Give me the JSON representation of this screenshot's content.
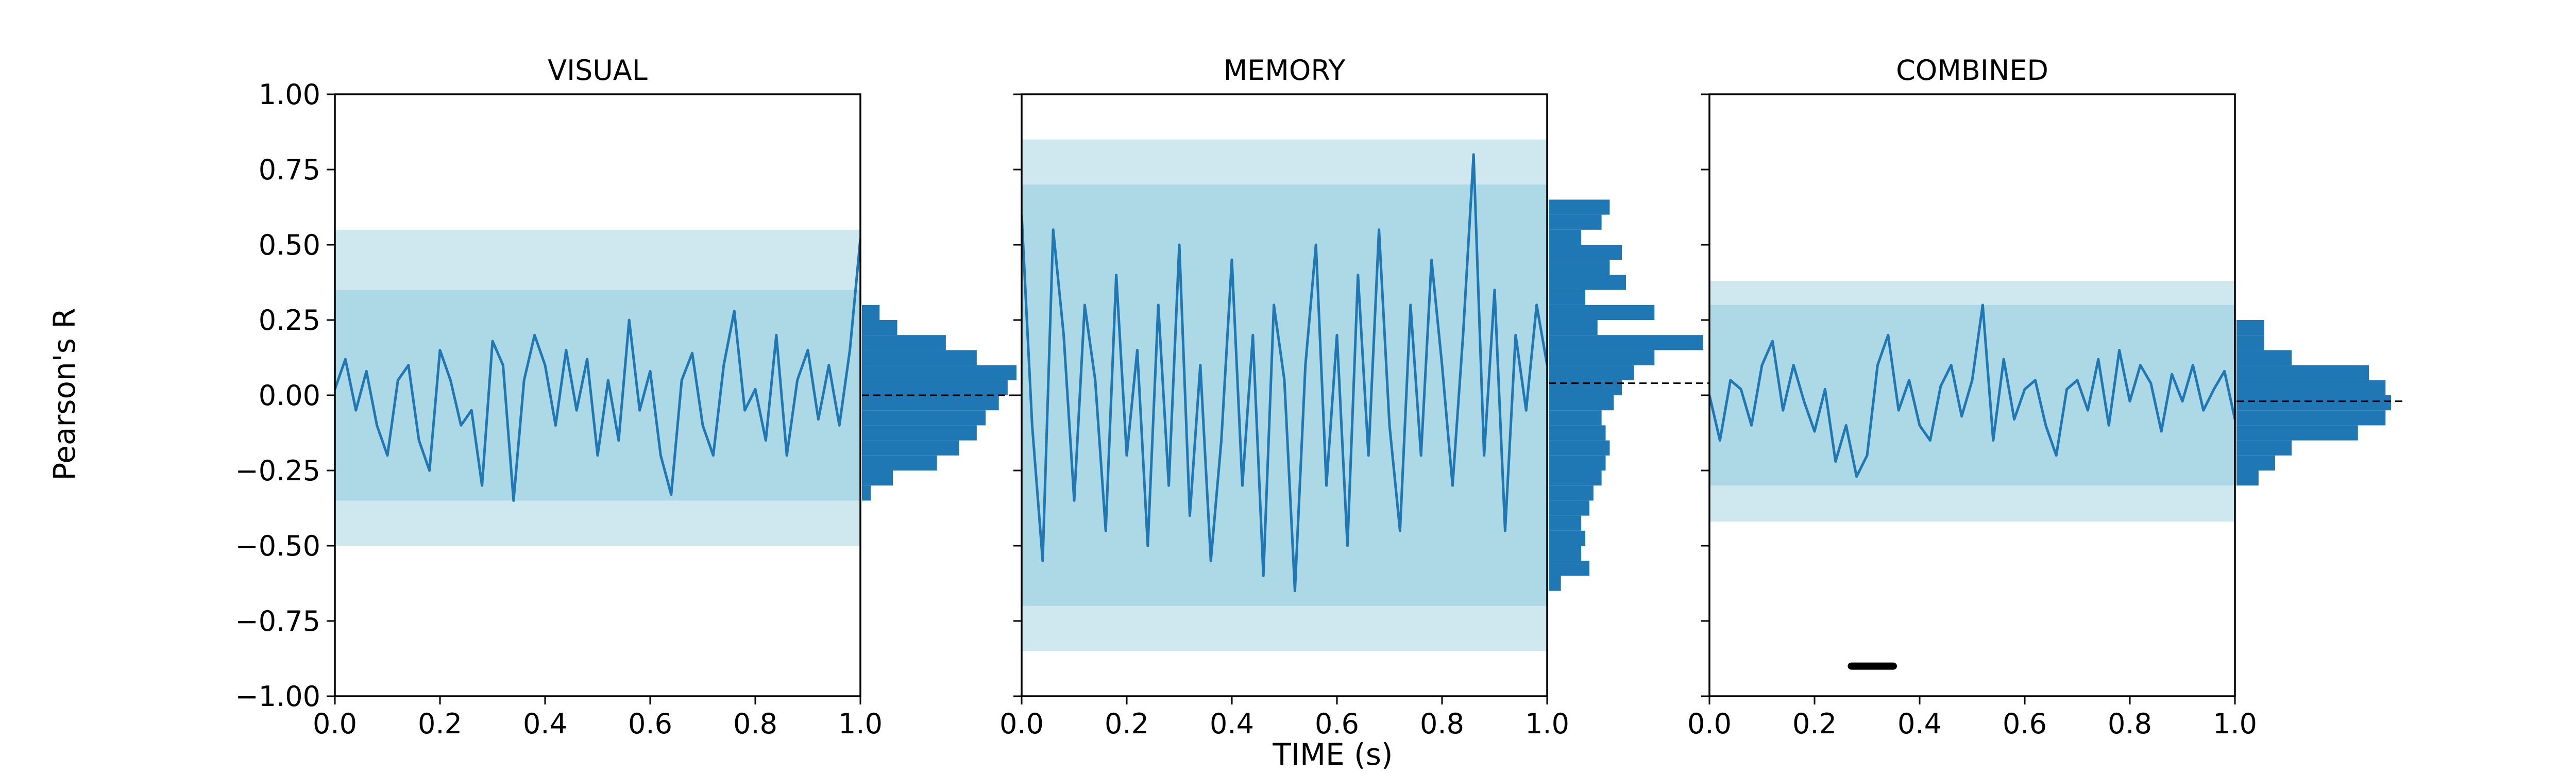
{
  "figure": {
    "ylabel": "Pearson's R",
    "xlabel": "TIME (s)"
  },
  "chart_data": [
    {
      "type": "line",
      "title": "VISUAL",
      "xlim": [
        0.0,
        1.0
      ],
      "ylim": [
        -1.0,
        1.0
      ],
      "xticks": [
        "0.0",
        "0.2",
        "0.4",
        "0.6",
        "0.8",
        "1.0"
      ],
      "yticks": [
        "1.00",
        "0.75",
        "0.50",
        "0.25",
        "0.00",
        "−0.25",
        "−0.50",
        "−0.75",
        "−1.00"
      ],
      "band": {
        "inner": [
          -0.35,
          0.35
        ],
        "outer": [
          -0.5,
          0.55
        ]
      },
      "series": [
        {
          "x": [
            0.0,
            0.02,
            0.04,
            0.06,
            0.08,
            0.1,
            0.12,
            0.14,
            0.16,
            0.18,
            0.2,
            0.22,
            0.24,
            0.26,
            0.28,
            0.3,
            0.32,
            0.34,
            0.36,
            0.38,
            0.4,
            0.42,
            0.44,
            0.46,
            0.48,
            0.5,
            0.52,
            0.54,
            0.56,
            0.58,
            0.6,
            0.62,
            0.64,
            0.66,
            0.68,
            0.7,
            0.72,
            0.74,
            0.76,
            0.78,
            0.8,
            0.82,
            0.84,
            0.86,
            0.88,
            0.9,
            0.92,
            0.94,
            0.96,
            0.98,
            1.0
          ],
          "y": [
            0.02,
            0.12,
            -0.05,
            0.08,
            -0.1,
            -0.2,
            0.05,
            0.1,
            -0.15,
            -0.25,
            0.15,
            0.05,
            -0.1,
            -0.05,
            -0.3,
            0.18,
            0.1,
            -0.35,
            0.05,
            0.2,
            0.1,
            -0.1,
            0.15,
            -0.05,
            0.12,
            -0.2,
            0.05,
            -0.15,
            0.25,
            -0.05,
            0.08,
            -0.2,
            -0.33,
            0.05,
            0.14,
            -0.1,
            -0.2,
            0.1,
            0.28,
            -0.05,
            0.02,
            -0.15,
            0.2,
            -0.2,
            0.05,
            0.15,
            -0.08,
            0.1,
            -0.1,
            0.15,
            0.52
          ]
        }
      ],
      "hist": {
        "bins": [
          -0.35,
          -0.3,
          -0.25,
          -0.2,
          -0.15,
          -0.1,
          -0.05,
          0.0,
          0.05,
          0.1,
          0.15,
          0.2,
          0.25
        ],
        "counts": [
          2,
          7,
          17,
          22,
          26,
          28,
          31,
          33,
          35,
          26,
          19,
          8,
          4
        ],
        "mean": 0.0
      }
    },
    {
      "type": "line",
      "title": "MEMORY",
      "xlim": [
        0.0,
        1.0
      ],
      "ylim": [
        -1.0,
        1.0
      ],
      "xticks": [
        "0.0",
        "0.2",
        "0.4",
        "0.6",
        "0.8",
        "1.0"
      ],
      "band": {
        "inner": [
          -0.7,
          0.7
        ],
        "outer": [
          -0.85,
          0.85
        ]
      },
      "series": [
        {
          "x": [
            0.0,
            0.02,
            0.04,
            0.06,
            0.08,
            0.1,
            0.12,
            0.14,
            0.16,
            0.18,
            0.2,
            0.22,
            0.24,
            0.26,
            0.28,
            0.3,
            0.32,
            0.34,
            0.36,
            0.38,
            0.4,
            0.42,
            0.44,
            0.46,
            0.48,
            0.5,
            0.52,
            0.54,
            0.56,
            0.58,
            0.6,
            0.62,
            0.64,
            0.66,
            0.68,
            0.7,
            0.72,
            0.74,
            0.76,
            0.78,
            0.8,
            0.82,
            0.84,
            0.86,
            0.88,
            0.9,
            0.92,
            0.94,
            0.96,
            0.98,
            1.0
          ],
          "y": [
            0.6,
            -0.1,
            -0.55,
            0.55,
            0.2,
            -0.35,
            0.3,
            0.05,
            -0.45,
            0.4,
            -0.2,
            0.15,
            -0.5,
            0.3,
            -0.3,
            0.5,
            -0.4,
            0.1,
            -0.55,
            -0.15,
            0.45,
            -0.3,
            0.2,
            -0.6,
            0.3,
            0.05,
            -0.65,
            0.1,
            0.5,
            -0.3,
            0.2,
            -0.5,
            0.4,
            -0.2,
            0.55,
            -0.1,
            -0.45,
            0.3,
            -0.2,
            0.45,
            0.1,
            -0.3,
            0.2,
            0.8,
            -0.2,
            0.35,
            -0.45,
            0.2,
            -0.05,
            0.3,
            0.1
          ]
        }
      ],
      "hist": {
        "bins": [
          -0.65,
          -0.6,
          -0.55,
          -0.5,
          -0.45,
          -0.4,
          -0.35,
          -0.3,
          -0.25,
          -0.2,
          -0.15,
          -0.1,
          -0.05,
          0.0,
          0.05,
          0.1,
          0.15,
          0.2,
          0.25,
          0.3,
          0.35,
          0.4,
          0.45,
          0.5,
          0.55,
          0.6
        ],
        "counts": [
          3,
          10,
          8,
          9,
          8,
          10,
          11,
          13,
          14,
          15,
          14,
          13,
          16,
          18,
          21,
          26,
          38,
          12,
          26,
          9,
          19,
          15,
          18,
          8,
          13,
          15
        ],
        "mean": 0.04
      }
    },
    {
      "type": "line",
      "title": "COMBINED",
      "xlim": [
        0.0,
        1.0
      ],
      "ylim": [
        -1.0,
        1.0
      ],
      "xticks": [
        "0.0",
        "0.2",
        "0.4",
        "0.6",
        "0.8",
        "1.0"
      ],
      "band": {
        "inner": [
          -0.3,
          0.3
        ],
        "outer": [
          -0.42,
          0.38
        ]
      },
      "series": [
        {
          "x": [
            0.0,
            0.02,
            0.04,
            0.06,
            0.08,
            0.1,
            0.12,
            0.14,
            0.16,
            0.18,
            0.2,
            0.22,
            0.24,
            0.26,
            0.28,
            0.3,
            0.32,
            0.34,
            0.36,
            0.38,
            0.4,
            0.42,
            0.44,
            0.46,
            0.48,
            0.5,
            0.52,
            0.54,
            0.56,
            0.58,
            0.6,
            0.62,
            0.64,
            0.66,
            0.68,
            0.7,
            0.72,
            0.74,
            0.76,
            0.78,
            0.8,
            0.82,
            0.84,
            0.86,
            0.88,
            0.9,
            0.92,
            0.94,
            0.96,
            0.98,
            1.0
          ],
          "y": [
            0.0,
            -0.15,
            0.05,
            0.02,
            -0.1,
            0.1,
            0.18,
            -0.05,
            0.1,
            -0.02,
            -0.12,
            0.02,
            -0.22,
            -0.1,
            -0.27,
            -0.2,
            0.1,
            0.2,
            -0.05,
            0.05,
            -0.1,
            -0.15,
            0.03,
            0.1,
            -0.07,
            0.05,
            0.3,
            -0.15,
            0.12,
            -0.08,
            0.02,
            0.05,
            -0.1,
            -0.2,
            0.02,
            0.05,
            -0.05,
            0.12,
            -0.1,
            0.15,
            -0.02,
            0.1,
            0.04,
            -0.12,
            0.07,
            -0.02,
            0.1,
            -0.05,
            0.02,
            0.08,
            -0.08
          ]
        }
      ],
      "hist": {
        "bins": [
          -0.3,
          -0.25,
          -0.2,
          -0.15,
          -0.1,
          -0.05,
          0.0,
          0.05,
          0.1,
          0.15,
          0.2
        ],
        "counts": [
          4,
          7,
          10,
          22,
          27,
          28,
          27,
          24,
          10,
          5,
          5
        ],
        "mean": -0.02
      },
      "marker": {
        "x_start": 0.27,
        "x_end": 0.35,
        "y": -0.9
      }
    }
  ]
}
